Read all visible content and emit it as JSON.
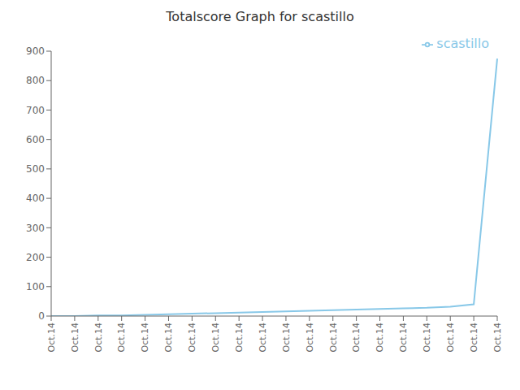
{
  "chart_data": {
    "type": "line",
    "title": "Totalscore Graph for scastillo",
    "categories": [
      "Oct.14",
      "Oct.14",
      "Oct.14",
      "Oct.14",
      "Oct.14",
      "Oct.14",
      "Oct.14",
      "Oct.14",
      "Oct.14",
      "Oct.14",
      "Oct.14",
      "Oct.14",
      "Oct.14",
      "Oct.14",
      "Oct.14",
      "Oct.14",
      "Oct.14",
      "Oct.14",
      "Oct.14",
      "Oct.14"
    ],
    "series": [
      {
        "name": "scastillo",
        "color": "#88c8e8",
        "values": [
          0,
          0,
          2,
          2,
          4,
          6,
          8,
          10,
          12,
          14,
          16,
          18,
          20,
          22,
          24,
          26,
          28,
          32,
          40,
          875
        ]
      }
    ],
    "ylim": [
      0,
      900
    ],
    "yticks": [
      0,
      100,
      200,
      300,
      400,
      500,
      600,
      700,
      800,
      900
    ],
    "grid": false,
    "legend": "upper right"
  }
}
